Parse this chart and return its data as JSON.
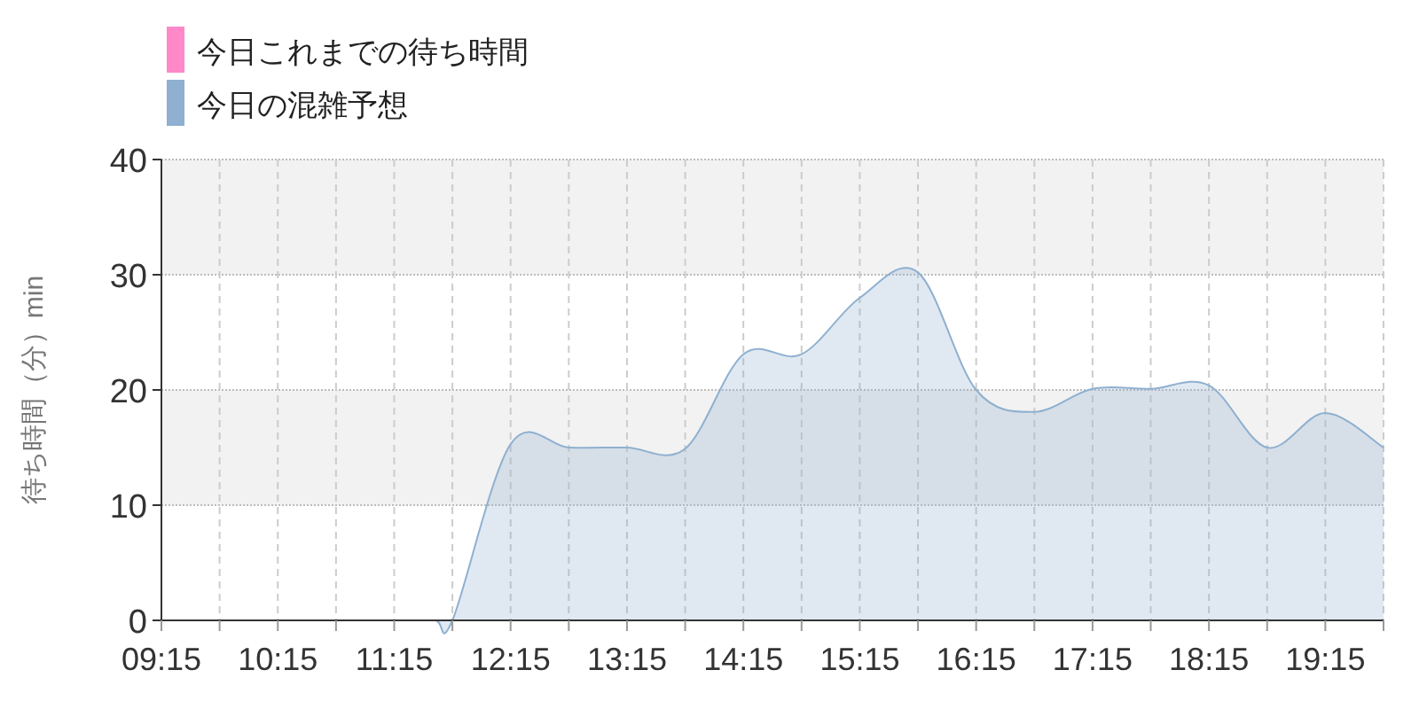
{
  "chart_data": {
    "type": "area",
    "ylabel": "待ち時間（分）min",
    "x": [
      9.25,
      9.75,
      10.25,
      10.75,
      11.25,
      11.6,
      11.75,
      12.25,
      12.75,
      13.25,
      13.75,
      14.25,
      14.75,
      15.25,
      15.75,
      16.25,
      16.75,
      17.25,
      17.75,
      18.25,
      18.75,
      19.25,
      19.75
    ],
    "series": [
      {
        "name": "今日これまでの待ち時間",
        "color": "#ff88c8",
        "values": [
          null,
          null,
          null,
          null,
          null,
          null,
          null,
          null,
          null,
          null,
          null,
          null,
          null,
          null,
          null,
          null,
          null,
          null,
          null,
          null,
          null,
          null,
          null
        ]
      },
      {
        "name": "今日の混雑予想",
        "color": "#8fb0d0",
        "values": [
          0,
          0,
          0,
          0,
          0,
          0,
          0,
          15.3,
          15.0,
          15.0,
          14.9,
          23.1,
          23.1,
          28.0,
          30.2,
          20.0,
          18.1,
          20.1,
          20.1,
          20.4,
          15.0,
          18.0,
          15.0
        ]
      }
    ],
    "xlim": [
      9.25,
      19.75
    ],
    "xticks": [
      {
        "value": 9.25,
        "label": "09:15"
      },
      {
        "value": 9.75,
        "label": null
      },
      {
        "value": 10.25,
        "label": "10:15"
      },
      {
        "value": 10.75,
        "label": null
      },
      {
        "value": 11.25,
        "label": "11:15"
      },
      {
        "value": 11.75,
        "label": null
      },
      {
        "value": 12.25,
        "label": "12:15"
      },
      {
        "value": 12.75,
        "label": null
      },
      {
        "value": 13.25,
        "label": "13:15"
      },
      {
        "value": 13.75,
        "label": null
      },
      {
        "value": 14.25,
        "label": "14:15"
      },
      {
        "value": 14.75,
        "label": null
      },
      {
        "value": 15.25,
        "label": "15:15"
      },
      {
        "value": 15.75,
        "label": null
      },
      {
        "value": 16.25,
        "label": "16:15"
      },
      {
        "value": 16.75,
        "label": null
      },
      {
        "value": 17.25,
        "label": "17:15"
      },
      {
        "value": 17.75,
        "label": null
      },
      {
        "value": 18.25,
        "label": "18:15"
      },
      {
        "value": 18.75,
        "label": null
      },
      {
        "value": 19.25,
        "label": "19:15"
      },
      {
        "value": 19.75,
        "label": null
      }
    ],
    "ylim": [
      0,
      40
    ],
    "yticks": [
      0,
      10,
      20,
      30,
      40
    ],
    "bands": [
      {
        "axis": "y",
        "from": 10,
        "to": 20,
        "color": "#f2f2f2"
      },
      {
        "axis": "y",
        "from": 30,
        "to": 40,
        "color": "#f2f2f2"
      }
    ],
    "grid": true,
    "legend": "top left"
  }
}
